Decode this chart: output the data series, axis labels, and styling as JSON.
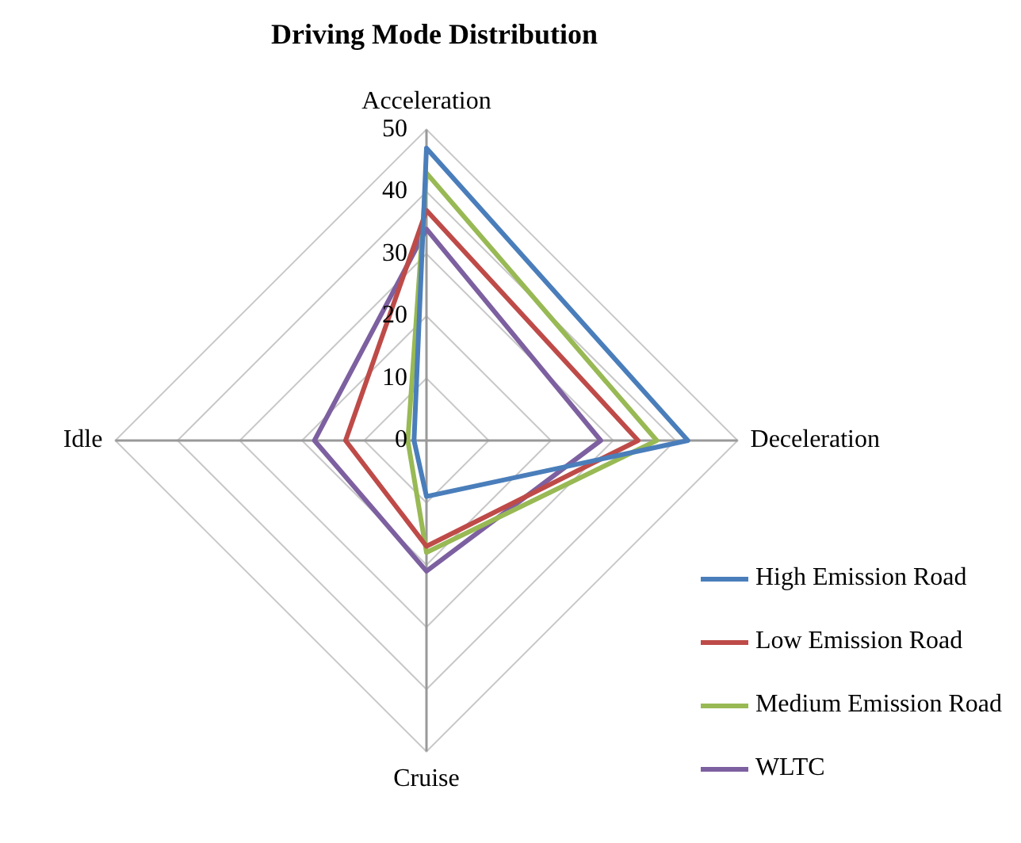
{
  "chart_data": {
    "type": "radar",
    "title": "Driving Mode Distribution",
    "categories": [
      "Acceleration",
      "Deceleration",
      "Cruise",
      "Idle"
    ],
    "ylim": [
      0,
      50
    ],
    "yticks": [
      0,
      10,
      20,
      30,
      40,
      50
    ],
    "grid": true,
    "legend": "bottom right",
    "marker": "none",
    "series": [
      {
        "name": "High Emission Road",
        "color": "#4a7ebb",
        "values": [
          47,
          42,
          9,
          2
        ]
      },
      {
        "name": "Low Emission Road",
        "color": "#be4b48",
        "values": [
          37,
          34,
          17,
          13
        ]
      },
      {
        "name": "Medium Emission Road",
        "color": "#98b954",
        "values": [
          43,
          37,
          18,
          3
        ]
      },
      {
        "name": "WLTC",
        "color": "#7d60a0",
        "values": [
          34,
          28,
          21,
          18
        ]
      }
    ]
  }
}
